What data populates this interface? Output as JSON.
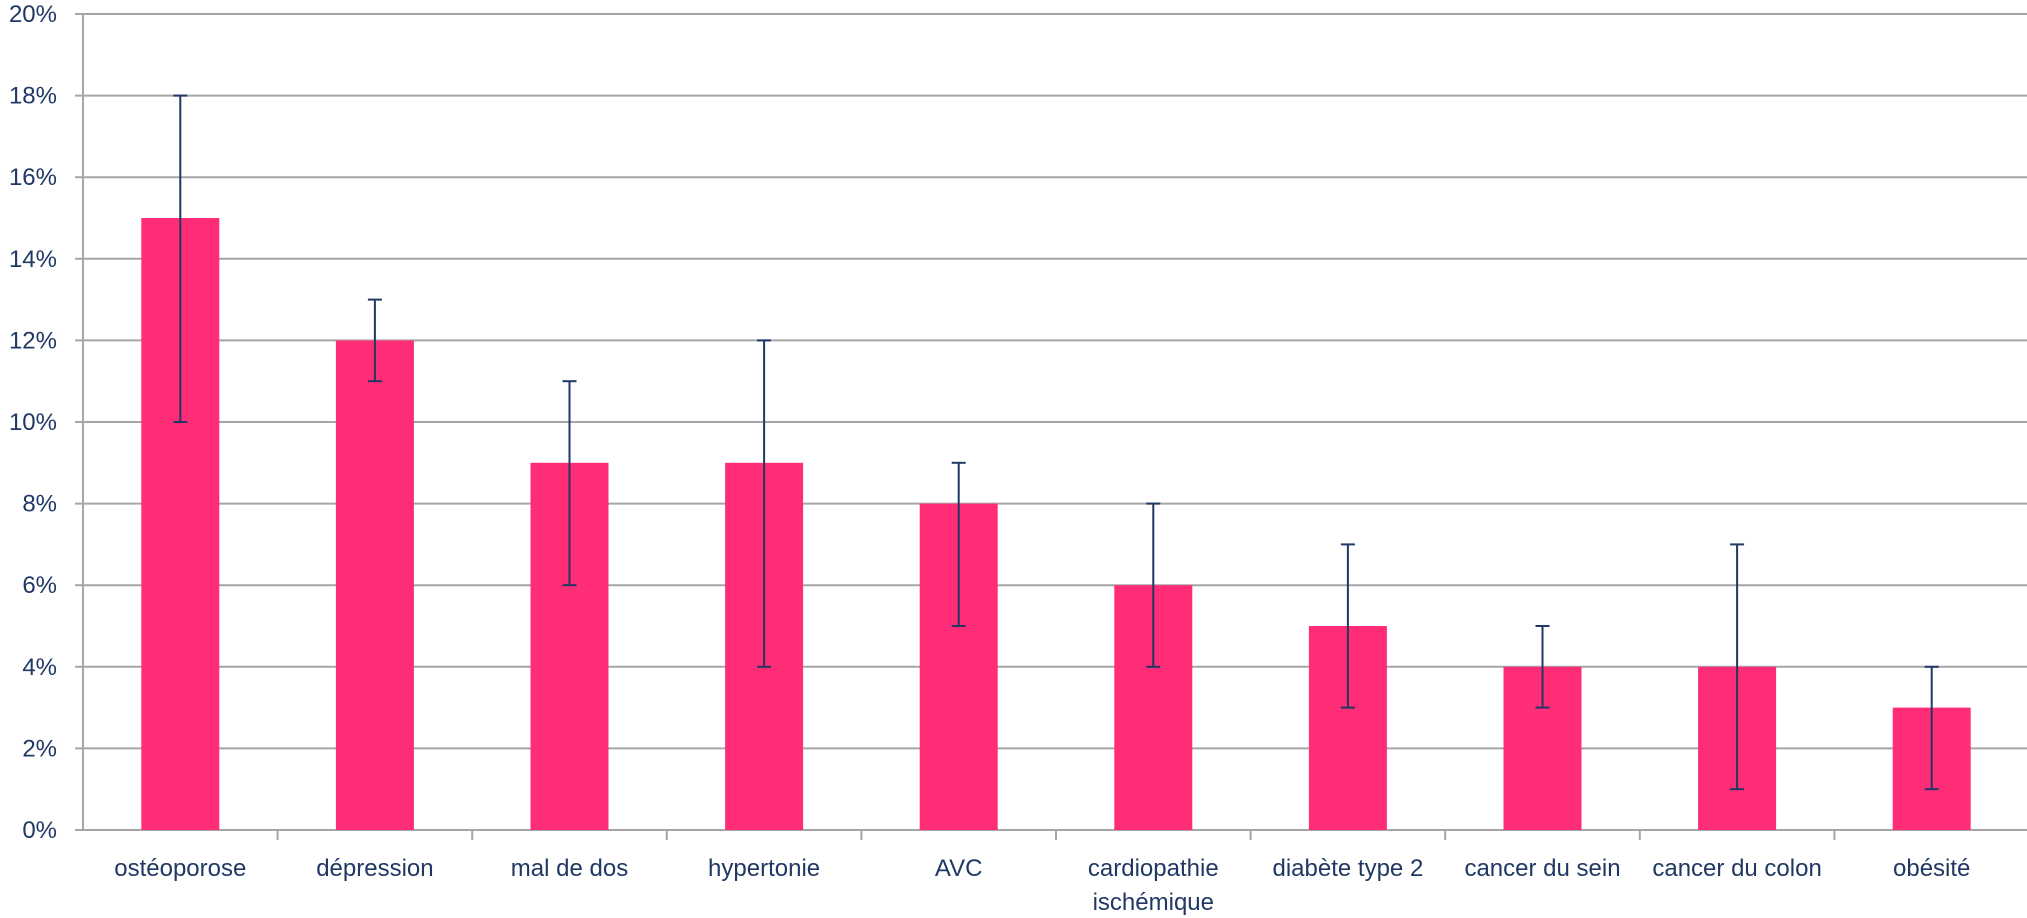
{
  "chart_data": {
    "type": "bar",
    "title": "",
    "xlabel": "",
    "ylabel": "",
    "ylim": [
      0,
      20
    ],
    "y_ticks": [
      "0%",
      "2%",
      "4%",
      "6%",
      "8%",
      "10%",
      "12%",
      "14%",
      "16%",
      "18%",
      "20%"
    ],
    "y_tick_values": [
      0,
      2,
      4,
      6,
      8,
      10,
      12,
      14,
      16,
      18,
      20
    ],
    "grid": true,
    "categories": [
      [
        "ostéoporose"
      ],
      [
        "dépression"
      ],
      [
        "mal de dos"
      ],
      [
        "hypertonie"
      ],
      [
        "AVC"
      ],
      [
        "cardiopathie",
        "ischémique"
      ],
      [
        "diabète type 2"
      ],
      [
        "cancer du sein"
      ],
      [
        "cancer du colon"
      ],
      [
        "obésité"
      ]
    ],
    "values": [
      15,
      12,
      9,
      9,
      8,
      6,
      5,
      4,
      4,
      3
    ],
    "error_low": [
      10,
      11,
      6,
      4,
      5,
      4,
      3,
      3,
      1,
      1
    ],
    "error_high": [
      18,
      13,
      11,
      12,
      9,
      8,
      7,
      5,
      7,
      4
    ],
    "colors": {
      "bar": "#ff2d78",
      "error_bar": "#1f3864",
      "grid": "#a6a6a6",
      "axis_text": "#1f3864"
    }
  }
}
